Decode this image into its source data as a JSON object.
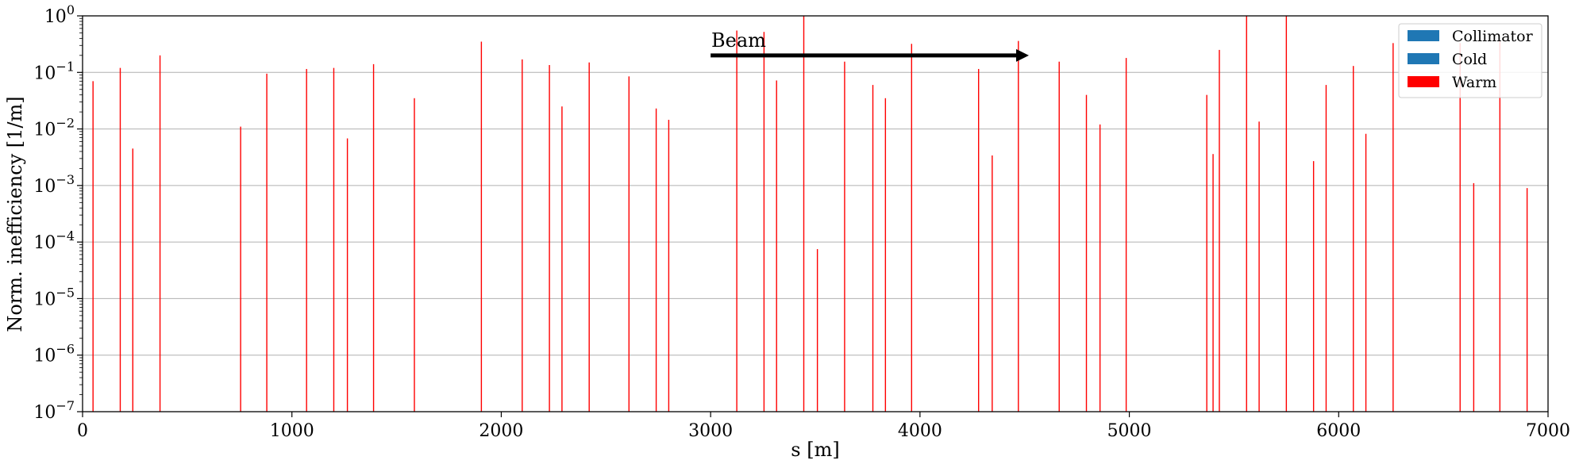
{
  "chart_data": {
    "type": "bar",
    "xlabel": "s [m]",
    "ylabel": "Norm. inefficiency [1/m]",
    "xlim": [
      0,
      7000
    ],
    "ylim": [
      1e-07,
      1
    ],
    "yscale": "log",
    "grid": "horizontal",
    "x_ticks": [
      {
        "value": 0,
        "label": "0"
      },
      {
        "value": 1000,
        "label": "1000"
      },
      {
        "value": 2000,
        "label": "2000"
      },
      {
        "value": 3000,
        "label": "3000"
      },
      {
        "value": 4000,
        "label": "4000"
      },
      {
        "value": 5000,
        "label": "5000"
      },
      {
        "value": 6000,
        "label": "6000"
      },
      {
        "value": 7000,
        "label": "7000"
      }
    ],
    "y_ticks": [
      {
        "value": 1e-07,
        "base": "10",
        "exp": "−7"
      },
      {
        "value": 1e-06,
        "base": "10",
        "exp": "−6"
      },
      {
        "value": 1e-05,
        "base": "10",
        "exp": "−5"
      },
      {
        "value": 0.0001,
        "base": "10",
        "exp": "−4"
      },
      {
        "value": 0.001,
        "base": "10",
        "exp": "−3"
      },
      {
        "value": 0.01,
        "base": "10",
        "exp": "−2"
      },
      {
        "value": 0.1,
        "base": "10",
        "exp": "−1"
      },
      {
        "value": 1,
        "base": "10",
        "exp": "0"
      }
    ],
    "legend": {
      "placement": "upper right",
      "entries": [
        {
          "label": "Collimator",
          "color": "#1f77b4"
        },
        {
          "label": "Cold",
          "color": "#1f77b4"
        },
        {
          "label": "Warm",
          "color": "#ff0000"
        }
      ]
    },
    "annotation": {
      "text": "Beam",
      "arrow_from": 3000,
      "arrow_to": 4520,
      "arrow_y": 0.2
    },
    "series": [
      {
        "name": "Warm",
        "color": "#ff0000",
        "points": [
          [
            50,
            0.07
          ],
          [
            180,
            0.12
          ],
          [
            240,
            0.0045
          ],
          [
            370,
            0.2
          ],
          [
            755,
            0.011
          ],
          [
            880,
            0.095
          ],
          [
            1070,
            0.115
          ],
          [
            1200,
            0.12
          ],
          [
            1265,
            0.0068
          ],
          [
            1390,
            0.14
          ],
          [
            1585,
            0.035
          ],
          [
            1905,
            0.35
          ],
          [
            2100,
            0.17
          ],
          [
            2230,
            0.135
          ],
          [
            2290,
            0.025
          ],
          [
            2420,
            0.15
          ],
          [
            2610,
            0.085
          ],
          [
            2740,
            0.023
          ],
          [
            2800,
            0.0145
          ],
          [
            3125,
            0.55
          ],
          [
            3255,
            0.52
          ],
          [
            3315,
            0.072
          ],
          [
            3445,
            1.0
          ],
          [
            3510,
            7.5e-05
          ],
          [
            3640,
            0.155
          ],
          [
            3775,
            0.06
          ],
          [
            3835,
            0.035
          ],
          [
            3960,
            0.32
          ],
          [
            4280,
            0.115
          ],
          [
            4345,
            0.0034
          ],
          [
            4470,
            0.36
          ],
          [
            4665,
            0.155
          ],
          [
            4795,
            0.04
          ],
          [
            4860,
            0.012
          ],
          [
            4985,
            0.18
          ],
          [
            5370,
            0.04
          ],
          [
            5400,
            0.0036
          ],
          [
            5430,
            0.25
          ],
          [
            5560,
            1.0
          ],
          [
            5620,
            0.0135
          ],
          [
            5750,
            1.0
          ],
          [
            5880,
            0.0027
          ],
          [
            5940,
            0.06
          ],
          [
            6070,
            0.13
          ],
          [
            6130,
            0.0082
          ],
          [
            6260,
            0.33
          ],
          [
            6580,
            0.33
          ],
          [
            6645,
            0.0011
          ],
          [
            6770,
            0.37
          ],
          [
            6900,
            0.0009
          ]
        ]
      }
    ]
  }
}
